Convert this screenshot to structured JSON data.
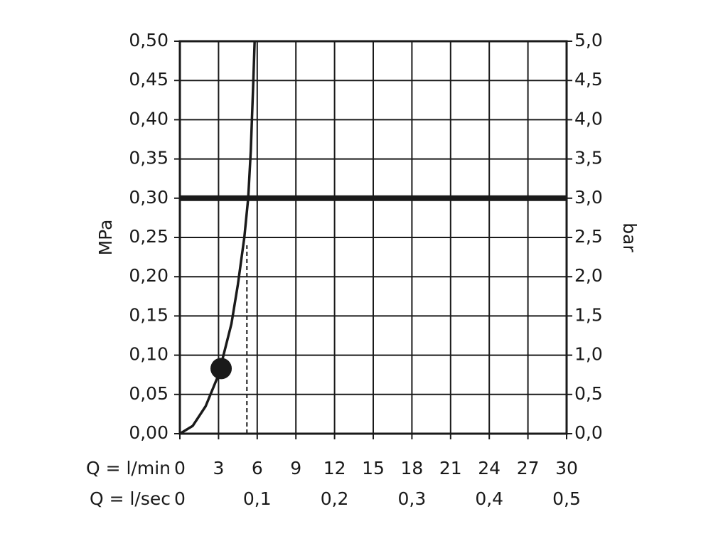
{
  "chart_data": {
    "type": "line",
    "ylabel": "MPa",
    "y2label": "bar",
    "xlabel": "Q = l/min",
    "x2label": "Q = l/sec",
    "x": [
      0,
      1,
      2,
      3,
      4,
      4.5,
      5,
      5.3,
      5.5,
      5.7,
      5.8
    ],
    "series": [
      {
        "color": "#1a1a1a",
        "values": [
          0,
          0.01,
          0.035,
          0.075,
          0.14,
          0.19,
          0.25,
          0.3,
          0.36,
          0.45,
          0.5
        ]
      }
    ],
    "xlim": [
      0,
      30
    ],
    "xticks": [
      0,
      3,
      6,
      9,
      12,
      15,
      18,
      21,
      24,
      27,
      30
    ],
    "x2lim": [
      0,
      0.5
    ],
    "x2ticks": [
      0,
      {
        "value": 0.1,
        "label": "0,1"
      },
      {
        "value": 0.2,
        "label": "0,2"
      },
      {
        "value": 0.3,
        "label": "0,3"
      },
      {
        "value": 0.4,
        "label": "0,4"
      },
      {
        "value": 0.5,
        "label": "0,5"
      }
    ],
    "ylim": [
      0,
      0.5
    ],
    "yticks": [
      {
        "value": 0,
        "label": "0,00"
      },
      {
        "value": 0.05,
        "label": "0,05"
      },
      {
        "value": 0.1,
        "label": "0,10"
      },
      {
        "value": 0.15,
        "label": "0,15"
      },
      {
        "value": 0.2,
        "label": "0,20"
      },
      {
        "value": 0.25,
        "label": "0,25"
      },
      {
        "value": 0.3,
        "label": "0,30"
      },
      {
        "value": 0.35,
        "label": "0,35"
      },
      {
        "value": 0.4,
        "label": "0,40"
      },
      {
        "value": 0.45,
        "label": "0,45"
      },
      {
        "value": 0.5,
        "label": "0,50"
      }
    ],
    "y2lim": [
      0,
      5
    ],
    "y2ticks": [
      {
        "value": 0,
        "label": "0,0"
      },
      {
        "value": 0.5,
        "label": "0,5"
      },
      {
        "value": 1,
        "label": "1,0"
      },
      {
        "value": 1.5,
        "label": "1,5"
      },
      {
        "value": 2,
        "label": "2,0"
      },
      {
        "value": 2.5,
        "label": "2,5"
      },
      {
        "value": 3,
        "label": "3,0"
      },
      {
        "value": 3.5,
        "label": "3,5"
      },
      {
        "value": 4,
        "label": "4,0"
      },
      {
        "value": 4.5,
        "label": "4,5"
      },
      {
        "value": 5,
        "label": "5,0"
      }
    ],
    "grid": true,
    "point": {
      "x": 3.2,
      "y": 0.083
    },
    "reference_line": {
      "y": 0.3
    },
    "dashed_line": {
      "x": 5.2,
      "y": 0.24
    }
  }
}
